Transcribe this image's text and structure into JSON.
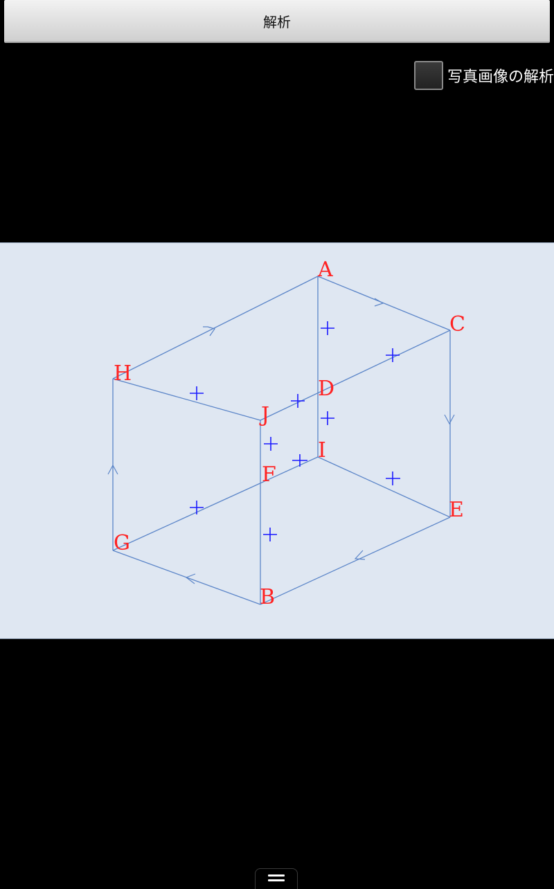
{
  "toolbar": {
    "analyze_label": "解析"
  },
  "options": {
    "photo_analysis_label": "写真画像の解析",
    "photo_analysis_checked": false
  },
  "diagram": {
    "edge_color": "#5b85c8",
    "mark_color": "#1a1aff",
    "label_color": "#ff2222",
    "labels": {
      "A": "A",
      "B": "B",
      "C": "C",
      "D": "D",
      "E": "E",
      "F": "F",
      "G": "G",
      "H": "H",
      "I": "I",
      "J": "J"
    }
  },
  "nav": {
    "menu_icon": "menu-icon"
  }
}
